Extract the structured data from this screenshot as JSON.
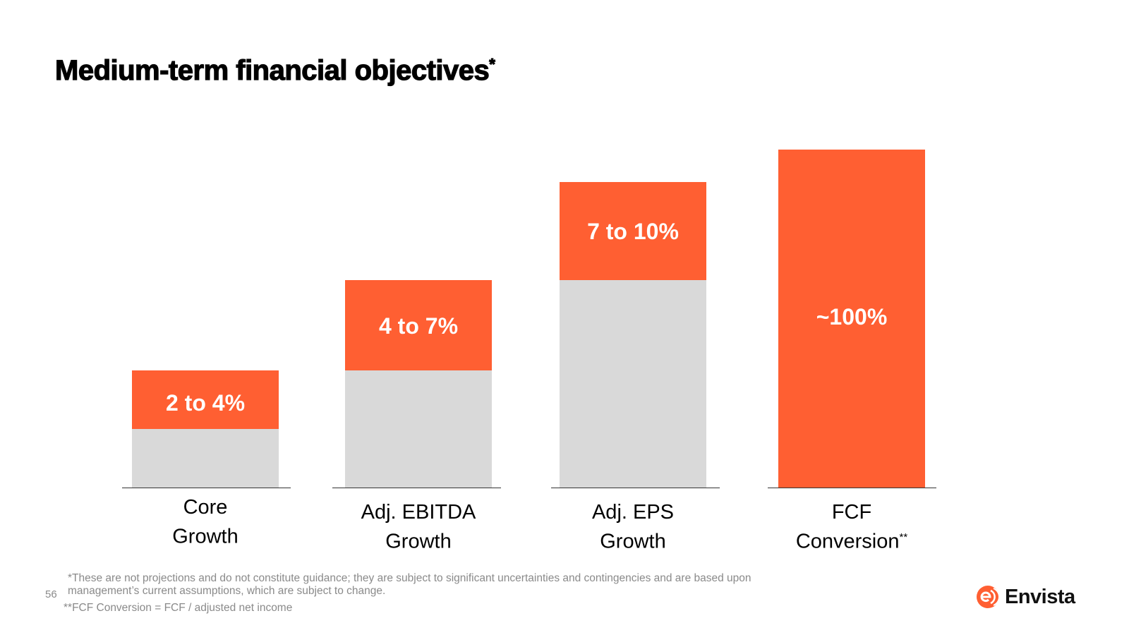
{
  "title": "Medium-term financial objectives",
  "title_marker": "*",
  "chart_data": {
    "type": "bar",
    "stacked": true,
    "categories": [
      "Core Growth",
      "Adj. EBITDA Growth",
      "Adj. EPS Growth",
      "FCF Conversion"
    ],
    "category_lines": [
      [
        "Core",
        "Growth"
      ],
      [
        "Adj. EBITDA",
        "Growth"
      ],
      [
        "Adj. EPS",
        "Growth"
      ],
      [
        "FCF",
        "Conversion"
      ]
    ],
    "category_markers": [
      "",
      "",
      "",
      "**"
    ],
    "value_labels": [
      "2 to 4%",
      "4 to 7%",
      "7 to 10%",
      "~100%"
    ],
    "ranges": [
      [
        2,
        4
      ],
      [
        4,
        7
      ],
      [
        7,
        10
      ],
      [
        100,
        100
      ]
    ],
    "axis_visible": false,
    "grid": false,
    "colors": {
      "target": "#FF5F32",
      "base": "#D9D9D9",
      "baseline": "#333333"
    }
  },
  "footnotes": {
    "line1": "*These are not projections and do not constitute guidance; they are subject to significant uncertainties and contingencies and are based upon",
    "line2": "management’s current assumptions, which are subject to change.",
    "line3": "**FCF Conversion = FCF / adjusted net income"
  },
  "page_number": "56",
  "logo": {
    "text": "Envista",
    "color": "#FF5F32"
  }
}
